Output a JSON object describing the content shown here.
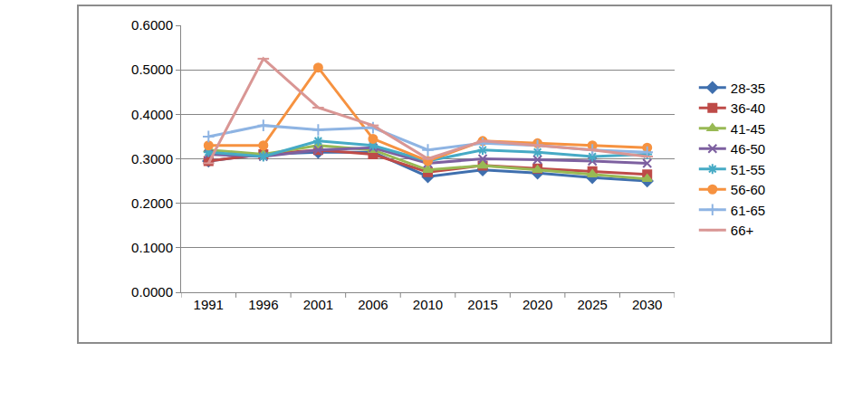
{
  "chart_data": {
    "type": "line",
    "categories": [
      "1991",
      "1996",
      "2001",
      "2006",
      "2010",
      "2015",
      "2020",
      "2025",
      "2030"
    ],
    "series": [
      {
        "name": "28-35",
        "color": "#3F6FAE",
        "marker": "diamond",
        "values": [
          0.295,
          0.31,
          0.315,
          0.315,
          0.26,
          0.275,
          0.268,
          0.258,
          0.25
        ]
      },
      {
        "name": "36-40",
        "color": "#BE4B48",
        "marker": "square",
        "values": [
          0.295,
          0.31,
          0.32,
          0.31,
          0.27,
          0.285,
          0.278,
          0.272,
          0.265
        ]
      },
      {
        "name": "41-45",
        "color": "#98B954",
        "marker": "triangle",
        "values": [
          0.32,
          0.31,
          0.33,
          0.32,
          0.275,
          0.285,
          0.275,
          0.265,
          0.255
        ]
      },
      {
        "name": "46-50",
        "color": "#7D60A0",
        "marker": "x",
        "values": [
          0.31,
          0.305,
          0.32,
          0.325,
          0.29,
          0.3,
          0.298,
          0.295,
          0.29
        ]
      },
      {
        "name": "51-55",
        "color": "#46AAC5",
        "marker": "star",
        "values": [
          0.315,
          0.305,
          0.34,
          0.33,
          0.295,
          0.32,
          0.315,
          0.305,
          0.31
        ]
      },
      {
        "name": "56-60",
        "color": "#F69240",
        "marker": "circle",
        "values": [
          0.33,
          0.33,
          0.505,
          0.345,
          0.295,
          0.34,
          0.335,
          0.33,
          0.325
        ]
      },
      {
        "name": "61-65",
        "color": "#8EB4E3",
        "marker": "plus",
        "values": [
          0.35,
          0.375,
          0.365,
          0.37,
          0.32,
          0.335,
          0.33,
          0.32,
          0.315
        ]
      },
      {
        "name": "66+",
        "color": "#D99694",
        "marker": "dash",
        "values": [
          0.29,
          0.525,
          0.415,
          0.375,
          0.3,
          0.34,
          0.33,
          0.32,
          0.305
        ]
      }
    ],
    "ylim": [
      0,
      0.6
    ],
    "yticks": [
      {
        "value": 0,
        "label": "0.0000"
      },
      {
        "value": 0.1,
        "label": "0.1000"
      },
      {
        "value": 0.2,
        "label": "0.2000"
      },
      {
        "value": 0.3,
        "label": "0.3000"
      },
      {
        "value": 0.4,
        "label": "0.4000"
      },
      {
        "value": 0.5,
        "label": "0.5000"
      },
      {
        "value": 0.6,
        "label": "0.6000"
      }
    ],
    "grid": true,
    "legend": "right"
  }
}
